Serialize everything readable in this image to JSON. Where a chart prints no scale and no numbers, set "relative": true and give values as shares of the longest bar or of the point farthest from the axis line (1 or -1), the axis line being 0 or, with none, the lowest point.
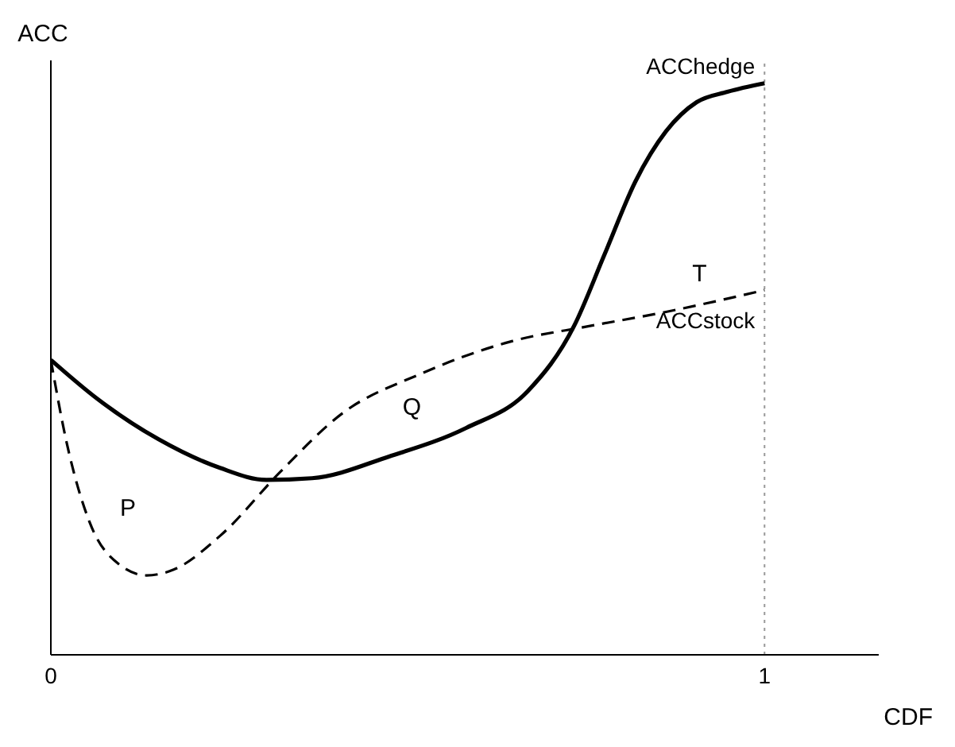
{
  "chart_data": {
    "type": "line",
    "xlabel": "CDF",
    "ylabel": "ACC",
    "relative": true,
    "xlim": [
      0,
      1.16
    ],
    "xticks": [
      0,
      1
    ],
    "grid": false,
    "legend": false,
    "marker": "none",
    "series": [
      {
        "name": "ACChedge",
        "color": "#000000",
        "line_style": "solid",
        "x": [
          0,
          0.065,
          0.151,
          0.237,
          0.302,
          0.366,
          0.474,
          0.582,
          0.668,
          0.733,
          0.776,
          0.819,
          0.862,
          0.905,
          0.948,
          1
        ],
        "values": [
          0.516,
          0.448,
          0.377,
          0.327,
          0.306,
          0.309,
          0.347,
          0.397,
          0.461,
          0.575,
          0.701,
          0.828,
          0.916,
          0.967,
          0.985,
          1
        ]
      },
      {
        "name": "ACCstock",
        "color": "#000000",
        "line_style": "dashed",
        "x": [
          0,
          0.022,
          0.054,
          0.097,
          0.134,
          0.172,
          0.237,
          0.323,
          0.409,
          0.517,
          0.647,
          0.754,
          0.862,
          1
        ],
        "values": [
          0.516,
          0.372,
          0.233,
          0.157,
          0.139,
          0.149,
          0.208,
          0.322,
          0.423,
          0.491,
          0.549,
          0.575,
          0.6,
          0.638
        ]
      }
    ],
    "ref_lines": [
      {
        "axis": "x",
        "value": 1,
        "color": "#999999",
        "line_style": "dotted"
      }
    ],
    "annotations": [
      "P",
      "Q",
      "T"
    ]
  }
}
